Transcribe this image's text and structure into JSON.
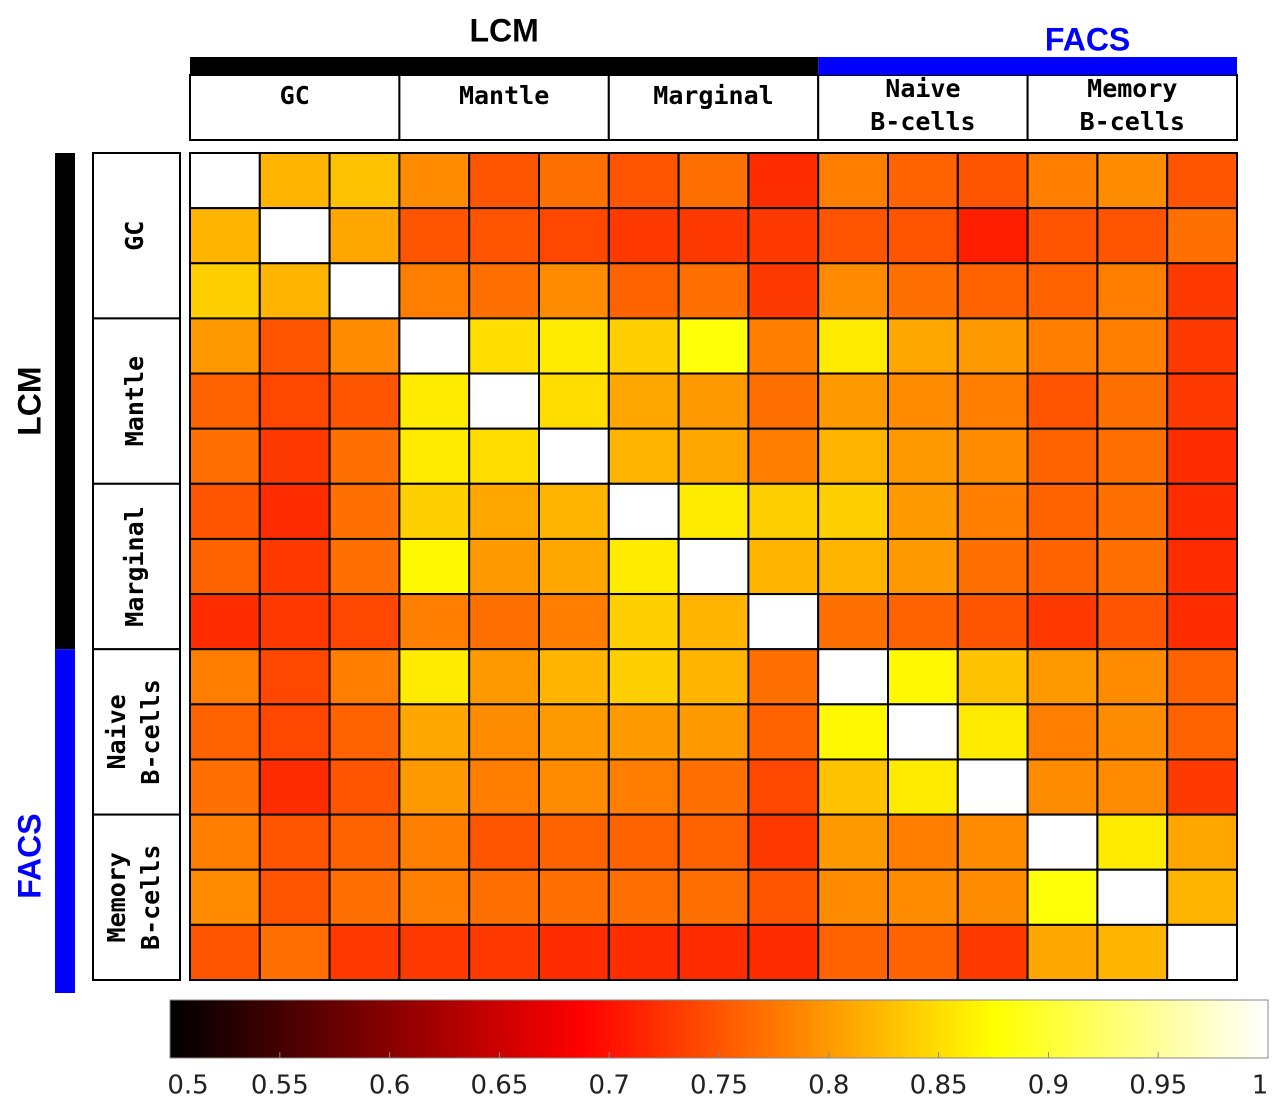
{
  "chart_data": {
    "type": "heatmap",
    "colormap": "hot",
    "super_groups": [
      {
        "name": "LCM",
        "color": "#000000",
        "groups": [
          {
            "lines": [
              "GC"
            ]
          },
          {
            "lines": [
              "Mantle"
            ]
          },
          {
            "lines": [
              "Marginal"
            ]
          }
        ]
      },
      {
        "name": "FACS",
        "color": "#0000ff",
        "groups": [
          {
            "lines": [
              "Naive",
              "B-cells"
            ]
          },
          {
            "lines": [
              "Memory",
              "B-cells"
            ]
          }
        ]
      }
    ],
    "values": [
      [
        1,
        0.82,
        0.83,
        0.79,
        0.75,
        0.77,
        0.75,
        0.77,
        0.72,
        0.78,
        0.76,
        0.75,
        0.78,
        0.79,
        0.75
      ],
      [
        0.82,
        1,
        0.81,
        0.75,
        0.75,
        0.74,
        0.73,
        0.73,
        0.73,
        0.75,
        0.75,
        0.71,
        0.75,
        0.75,
        0.77
      ],
      [
        0.84,
        0.82,
        1,
        0.78,
        0.77,
        0.79,
        0.76,
        0.77,
        0.73,
        0.79,
        0.77,
        0.76,
        0.76,
        0.78,
        0.73
      ],
      [
        0.8,
        0.75,
        0.79,
        1,
        0.85,
        0.86,
        0.84,
        0.88,
        0.78,
        0.86,
        0.81,
        0.8,
        0.78,
        0.78,
        0.73
      ],
      [
        0.76,
        0.74,
        0.75,
        0.86,
        1,
        0.85,
        0.81,
        0.8,
        0.77,
        0.8,
        0.79,
        0.78,
        0.75,
        0.77,
        0.73
      ],
      [
        0.77,
        0.73,
        0.77,
        0.86,
        0.85,
        1,
        0.82,
        0.81,
        0.78,
        0.82,
        0.8,
        0.79,
        0.76,
        0.77,
        0.72
      ],
      [
        0.75,
        0.72,
        0.77,
        0.84,
        0.81,
        0.82,
        1,
        0.86,
        0.84,
        0.84,
        0.8,
        0.78,
        0.76,
        0.77,
        0.72
      ],
      [
        0.76,
        0.73,
        0.77,
        0.87,
        0.8,
        0.81,
        0.86,
        1,
        0.82,
        0.82,
        0.8,
        0.77,
        0.76,
        0.77,
        0.72
      ],
      [
        0.72,
        0.73,
        0.74,
        0.78,
        0.77,
        0.78,
        0.84,
        0.82,
        1,
        0.77,
        0.76,
        0.75,
        0.73,
        0.75,
        0.72
      ],
      [
        0.78,
        0.74,
        0.78,
        0.86,
        0.8,
        0.82,
        0.84,
        0.82,
        0.77,
        1,
        0.87,
        0.83,
        0.8,
        0.79,
        0.76
      ],
      [
        0.76,
        0.74,
        0.76,
        0.81,
        0.79,
        0.8,
        0.8,
        0.8,
        0.76,
        0.87,
        1,
        0.86,
        0.78,
        0.79,
        0.76
      ],
      [
        0.77,
        0.72,
        0.75,
        0.8,
        0.78,
        0.79,
        0.78,
        0.77,
        0.74,
        0.83,
        0.86,
        1,
        0.79,
        0.79,
        0.73
      ],
      [
        0.78,
        0.75,
        0.76,
        0.78,
        0.75,
        0.76,
        0.76,
        0.76,
        0.73,
        0.8,
        0.78,
        0.79,
        1,
        0.86,
        0.81
      ],
      [
        0.79,
        0.75,
        0.77,
        0.78,
        0.77,
        0.77,
        0.77,
        0.77,
        0.75,
        0.79,
        0.79,
        0.79,
        0.88,
        1,
        0.82
      ],
      [
        0.75,
        0.77,
        0.73,
        0.73,
        0.73,
        0.72,
        0.72,
        0.72,
        0.72,
        0.76,
        0.76,
        0.73,
        0.81,
        0.82,
        1
      ]
    ],
    "colorbar": {
      "lim": [
        0.5,
        1
      ],
      "ticks": [
        0.5,
        0.55,
        0.6,
        0.65,
        0.7,
        0.75,
        0.8,
        0.85,
        0.9,
        0.95,
        1
      ]
    }
  }
}
